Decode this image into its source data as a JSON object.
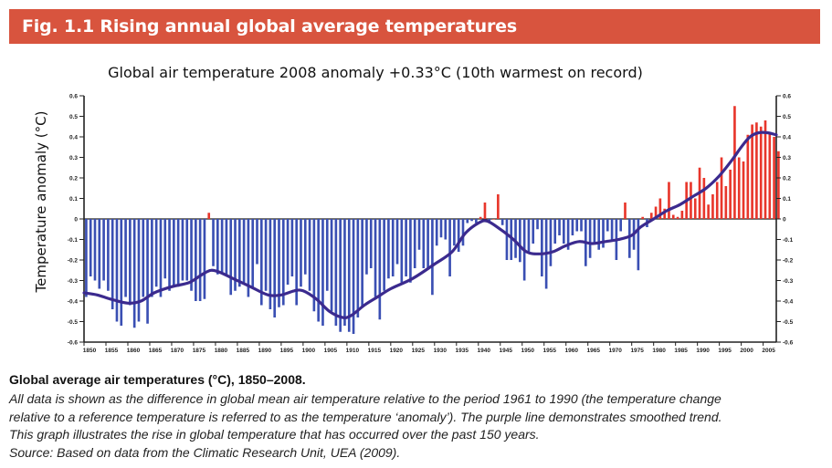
{
  "header": {
    "title": "Fig. 1.1 Rising annual global average temperatures"
  },
  "chart_data": {
    "type": "bar",
    "title": "Global air temperature 2008 anomaly +0.33°C (10th warmest on record)",
    "ylabel": "Temperature anomaly (°C)",
    "xlabel": "",
    "ylim": [
      -0.6,
      0.6
    ],
    "xlim": [
      1850,
      2008
    ],
    "y_ticks": [
      "0.6",
      "0.5",
      "0.4",
      "0.3",
      "0.2",
      "0.1",
      "0",
      "-0.1",
      "-0.2",
      "-0.3",
      "-0.4",
      "-0.5",
      "-0.6"
    ],
    "x_ticks": [
      "1850",
      "1855",
      "1860",
      "1865",
      "1870",
      "1875",
      "1880",
      "1885",
      "1890",
      "1895",
      "1900",
      "1905",
      "1910",
      "1915",
      "1920",
      "1925",
      "1930",
      "1935",
      "1940",
      "1945",
      "1950",
      "1955",
      "1960",
      "1965",
      "1970",
      "1975",
      "1980",
      "1985",
      "1990",
      "1995",
      "2000",
      "2005"
    ],
    "grid": false,
    "colors": {
      "positive": "#e8362b",
      "negative": "#3a4fb3",
      "smoothed": "#3b2a8e"
    },
    "years": [
      1850,
      1851,
      1852,
      1853,
      1854,
      1855,
      1856,
      1857,
      1858,
      1859,
      1860,
      1861,
      1862,
      1863,
      1864,
      1865,
      1866,
      1867,
      1868,
      1869,
      1870,
      1871,
      1872,
      1873,
      1874,
      1875,
      1876,
      1877,
      1878,
      1879,
      1880,
      1881,
      1882,
      1883,
      1884,
      1885,
      1886,
      1887,
      1888,
      1889,
      1890,
      1891,
      1892,
      1893,
      1894,
      1895,
      1896,
      1897,
      1898,
      1899,
      1900,
      1901,
      1902,
      1903,
      1904,
      1905,
      1906,
      1907,
      1908,
      1909,
      1910,
      1911,
      1912,
      1913,
      1914,
      1915,
      1916,
      1917,
      1918,
      1919,
      1920,
      1921,
      1922,
      1923,
      1924,
      1925,
      1926,
      1927,
      1928,
      1929,
      1930,
      1931,
      1932,
      1933,
      1934,
      1935,
      1936,
      1937,
      1938,
      1939,
      1940,
      1941,
      1942,
      1943,
      1944,
      1945,
      1946,
      1947,
      1948,
      1949,
      1950,
      1951,
      1952,
      1953,
      1954,
      1955,
      1956,
      1957,
      1958,
      1959,
      1960,
      1961,
      1962,
      1963,
      1964,
      1965,
      1966,
      1967,
      1968,
      1969,
      1970,
      1971,
      1972,
      1973,
      1974,
      1975,
      1976,
      1977,
      1978,
      1979,
      1980,
      1981,
      1982,
      1983,
      1984,
      1985,
      1986,
      1987,
      1988,
      1989,
      1990,
      1991,
      1992,
      1993,
      1994,
      1995,
      1996,
      1997,
      1998,
      1999,
      2000,
      2001,
      2002,
      2003,
      2004,
      2005,
      2006,
      2007,
      2008
    ],
    "series": [
      {
        "values": [
          -0.38,
          -0.28,
          -0.3,
          -0.34,
          -0.3,
          -0.35,
          -0.44,
          -0.5,
          -0.52,
          -0.38,
          -0.42,
          -0.53,
          -0.5,
          -0.38,
          -0.51,
          -0.38,
          -0.33,
          -0.38,
          -0.29,
          -0.35,
          -0.33,
          -0.33,
          -0.3,
          -0.3,
          -0.35,
          -0.4,
          -0.4,
          -0.39,
          0.03,
          -0.23,
          -0.27,
          -0.26,
          -0.28,
          -0.37,
          -0.35,
          -0.33,
          -0.32,
          -0.38,
          -0.34,
          -0.22,
          -0.42,
          -0.35,
          -0.44,
          -0.48,
          -0.43,
          -0.42,
          -0.32,
          -0.28,
          -0.42,
          -0.33,
          -0.27,
          -0.35,
          -0.45,
          -0.5,
          -0.52,
          -0.35,
          -0.45,
          -0.52,
          -0.55,
          -0.52,
          -0.55,
          -0.56,
          -0.48,
          -0.43,
          -0.27,
          -0.24,
          -0.38,
          -0.49,
          -0.35,
          -0.29,
          -0.28,
          -0.22,
          -0.31,
          -0.28,
          -0.31,
          -0.24,
          -0.15,
          -0.24,
          -0.24,
          -0.37,
          -0.13,
          -0.09,
          -0.1,
          -0.28,
          -0.13,
          -0.16,
          -0.13,
          -0.02,
          -0.01,
          -0.02,
          0.01,
          0.08,
          -0.01,
          0.0,
          0.12,
          -0.03,
          -0.2,
          -0.2,
          -0.19,
          -0.21,
          -0.3,
          -0.16,
          -0.12,
          -0.05,
          -0.28,
          -0.34,
          -0.23,
          -0.12,
          -0.08,
          -0.12,
          -0.15,
          -0.08,
          -0.06,
          -0.06,
          -0.23,
          -0.19,
          -0.12,
          -0.15,
          -0.14,
          -0.06,
          -0.1,
          -0.2,
          -0.06,
          0.08,
          -0.19,
          -0.15,
          -0.25,
          0.01,
          -0.04,
          0.03,
          0.06,
          0.1,
          0.05,
          0.18,
          0.02,
          0.01,
          0.04,
          0.18,
          0.18,
          0.1,
          0.25,
          0.2,
          0.07,
          0.12,
          0.18,
          0.3,
          0.16,
          0.24,
          0.55,
          0.3,
          0.28,
          0.41,
          0.46,
          0.47,
          0.45,
          0.48,
          0.42,
          0.4,
          0.33
        ]
      }
    ],
    "smoothed": [
      [
        1850,
        -0.36
      ],
      [
        1853,
        -0.37
      ],
      [
        1856,
        -0.39
      ],
      [
        1860,
        -0.41
      ],
      [
        1863,
        -0.4
      ],
      [
        1866,
        -0.36
      ],
      [
        1870,
        -0.33
      ],
      [
        1874,
        -0.31
      ],
      [
        1877,
        -0.27
      ],
      [
        1879,
        -0.25
      ],
      [
        1881,
        -0.26
      ],
      [
        1884,
        -0.29
      ],
      [
        1888,
        -0.33
      ],
      [
        1892,
        -0.37
      ],
      [
        1895,
        -0.37
      ],
      [
        1898,
        -0.35
      ],
      [
        1900,
        -0.35
      ],
      [
        1903,
        -0.39
      ],
      [
        1906,
        -0.45
      ],
      [
        1909,
        -0.48
      ],
      [
        1911,
        -0.47
      ],
      [
        1914,
        -0.42
      ],
      [
        1917,
        -0.38
      ],
      [
        1920,
        -0.34
      ],
      [
        1925,
        -0.29
      ],
      [
        1930,
        -0.22
      ],
      [
        1934,
        -0.16
      ],
      [
        1937,
        -0.07
      ],
      [
        1940,
        -0.02
      ],
      [
        1942,
        -0.01
      ],
      [
        1945,
        -0.05
      ],
      [
        1948,
        -0.1
      ],
      [
        1951,
        -0.16
      ],
      [
        1954,
        -0.17
      ],
      [
        1957,
        -0.16
      ],
      [
        1960,
        -0.13
      ],
      [
        1963,
        -0.11
      ],
      [
        1966,
        -0.12
      ],
      [
        1969,
        -0.11
      ],
      [
        1972,
        -0.1
      ],
      [
        1975,
        -0.08
      ],
      [
        1977,
        -0.04
      ],
      [
        1980,
        0.0
      ],
      [
        1983,
        0.04
      ],
      [
        1986,
        0.07
      ],
      [
        1989,
        0.11
      ],
      [
        1992,
        0.15
      ],
      [
        1995,
        0.21
      ],
      [
        1998,
        0.29
      ],
      [
        2000,
        0.35
      ],
      [
        2002,
        0.4
      ],
      [
        2004,
        0.42
      ],
      [
        2006,
        0.42
      ],
      [
        2008,
        0.41
      ]
    ]
  },
  "caption": {
    "heading": "Global average air temperatures (°C), 1850–2008.",
    "lines": [
      "All data is shown as the difference in global mean air temperature relative to the period 1961 to 1990 (the temperature change",
      "relative to a reference temperature is referred to as the temperature ‘anomaly’). The purple line demonstrates smoothed trend.",
      "This graph illustrates the rise in global temperature that has occurred over the past 150 years.",
      "Source: Based on data from the Climatic Research Unit, UEA (2009)."
    ]
  }
}
